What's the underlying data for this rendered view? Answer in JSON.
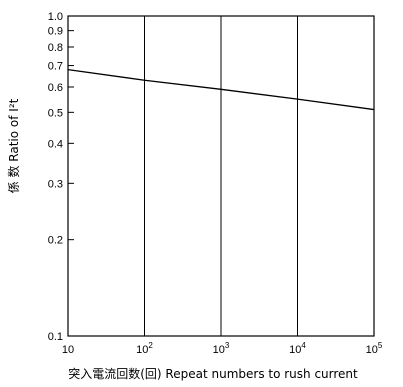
{
  "chart_data": {
    "type": "line",
    "title": "",
    "xlabel": "突入電流回数(回) Repeat numbers to rush current",
    "ylabel": "係 数 Ratio of I²t",
    "x_scale": "log",
    "y_scale": "log",
    "xlim": [
      10,
      100000
    ],
    "ylim": [
      0.1,
      1.0
    ],
    "grid": "vertical lines at decades",
    "legend": "none",
    "x_ticks": [
      {
        "value": 10,
        "base": "10",
        "exp": ""
      },
      {
        "value": 100,
        "base": "10",
        "exp": "2"
      },
      {
        "value": 1000,
        "base": "10",
        "exp": "3"
      },
      {
        "value": 10000,
        "base": "10",
        "exp": "4"
      },
      {
        "value": 100000,
        "base": "10",
        "exp": "5"
      }
    ],
    "y_ticks": [
      {
        "value": 0.1,
        "label": "0.1"
      },
      {
        "value": 0.2,
        "label": "0.2"
      },
      {
        "value": 0.3,
        "label": "0.3"
      },
      {
        "value": 0.4,
        "label": "0.4"
      },
      {
        "value": 0.5,
        "label": "0.5"
      },
      {
        "value": 0.6,
        "label": "0.6"
      },
      {
        "value": 0.7,
        "label": "0.7"
      },
      {
        "value": 0.8,
        "label": "0.8"
      },
      {
        "value": 0.9,
        "label": "0.9"
      },
      {
        "value": 1.0,
        "label": "1.0"
      }
    ],
    "series": [
      {
        "x": [
          10,
          100,
          1000,
          10000,
          100000
        ],
        "y": [
          0.68,
          0.63,
          0.59,
          0.55,
          0.51
        ]
      }
    ],
    "color": "#000000"
  }
}
